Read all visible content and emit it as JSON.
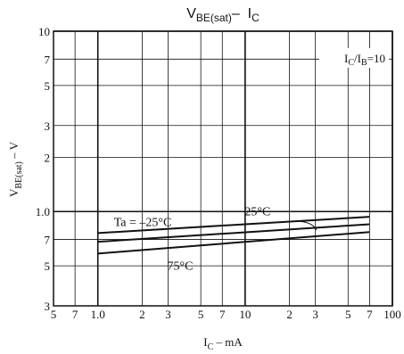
{
  "chart_data": {
    "type": "line",
    "title": [
      "V",
      "BE(sat)",
      "–  I",
      "C"
    ],
    "x_label": [
      "I",
      "C",
      " – mA"
    ],
    "y_label": [
      "V",
      "BE(sat)",
      " – V"
    ],
    "annotation": [
      "I",
      "C",
      "/I",
      "B",
      "=10"
    ],
    "log_x": true,
    "log_y": true,
    "grid": true,
    "xlim": [
      0.5,
      100
    ],
    "ylim": [
      0.3,
      10
    ],
    "xticks": [
      {
        "value": 0.5,
        "label": "5"
      },
      {
        "value": 0.7,
        "label": "7"
      },
      {
        "value": 1,
        "label": "1.0"
      },
      2,
      3,
      5,
      7,
      10,
      {
        "value": 20,
        "label": "2"
      },
      {
        "value": 30,
        "label": "3"
      },
      {
        "value": 50,
        "label": "5"
      },
      {
        "value": 70,
        "label": "7"
      },
      100
    ],
    "yticks": [
      {
        "value": 0.3,
        "label": "3"
      },
      {
        "value": 0.5,
        "label": "5"
      },
      {
        "value": 0.7,
        "label": "7"
      },
      {
        "value": 1,
        "label": "1.0"
      },
      2,
      3,
      5,
      7,
      10
    ],
    "series": [
      {
        "name": "Ta = –25°C",
        "color": "#111",
        "x": [
          1,
          70
        ],
        "values": [
          0.76,
          0.935
        ]
      },
      {
        "name": "25°C",
        "color": "#111",
        "x": [
          1,
          70
        ],
        "values": [
          0.68,
          0.85
        ]
      },
      {
        "name": "75°C",
        "color": "#111",
        "x": [
          1,
          70
        ],
        "values": [
          0.585,
          0.77
        ]
      }
    ]
  }
}
